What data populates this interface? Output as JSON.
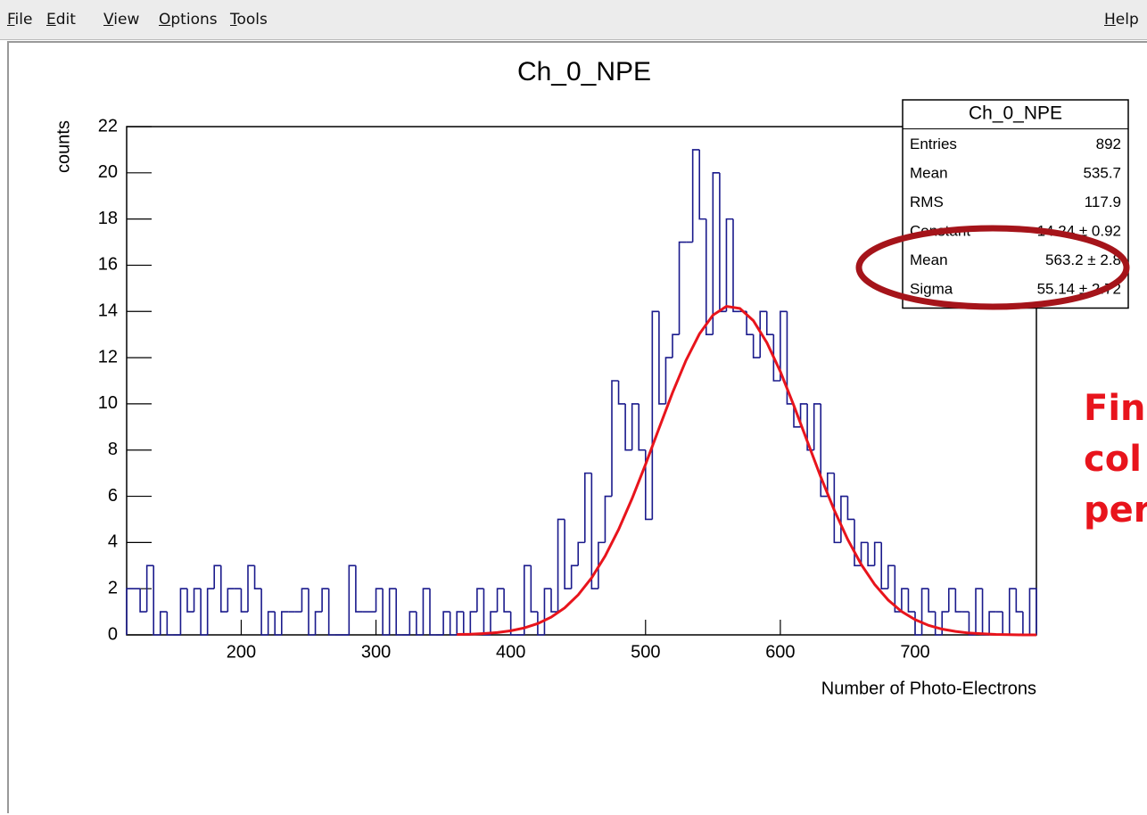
{
  "menu": {
    "items": [
      "File",
      "Edit",
      "View",
      "Options",
      "Tools"
    ],
    "help": "Help"
  },
  "chart_data": {
    "type": "histogram",
    "title": "Ch_0_NPE",
    "x_label": "Number of Photo-Electrons",
    "y_label": "counts",
    "color": "#1a1a8c",
    "bins": [
      115,
      120,
      125,
      130,
      135,
      140,
      145,
      150,
      155,
      160,
      165,
      170,
      175,
      180,
      185,
      190,
      195,
      200,
      205,
      210,
      215,
      220,
      225,
      230,
      235,
      240,
      245,
      250,
      255,
      260,
      265,
      270,
      275,
      280,
      285,
      290,
      295,
      300,
      305,
      310,
      315,
      320,
      325,
      330,
      335,
      340,
      345,
      350,
      355,
      360,
      365,
      370,
      375,
      380,
      385,
      390,
      395,
      400,
      405,
      410,
      415,
      420,
      425,
      430,
      435,
      440,
      445,
      450,
      455,
      460,
      465,
      470,
      475,
      480,
      485,
      490,
      495,
      500,
      505,
      510,
      515,
      520,
      525,
      530,
      535,
      540,
      545,
      550,
      555,
      560,
      565,
      570,
      575,
      580,
      585,
      590,
      595,
      600,
      605,
      610,
      615,
      620,
      625,
      630,
      635,
      640,
      645,
      650,
      655,
      660,
      665,
      670,
      675,
      680,
      685,
      690,
      695,
      700,
      705,
      710,
      715,
      720,
      725,
      730,
      735,
      740,
      745,
      750,
      755,
      760,
      765,
      770,
      775,
      780,
      785,
      790
    ],
    "values": [
      2,
      2,
      1,
      3,
      0,
      1,
      0,
      0,
      2,
      1,
      2,
      0,
      2,
      3,
      1,
      2,
      2,
      1,
      3,
      2,
      0,
      1,
      0,
      1,
      1,
      1,
      2,
      0,
      1,
      2,
      0,
      0,
      0,
      3,
      1,
      1,
      1,
      2,
      0,
      2,
      0,
      0,
      1,
      0,
      2,
      0,
      0,
      1,
      0,
      1,
      0,
      1,
      2,
      0,
      1,
      2,
      1,
      0,
      0,
      3,
      1,
      0,
      2,
      1,
      5,
      2,
      3,
      4,
      7,
      2,
      4,
      6,
      11,
      10,
      8,
      10,
      8,
      5,
      14,
      10,
      12,
      13,
      17,
      17,
      21,
      18,
      13,
      20,
      14,
      18,
      14,
      14,
      13,
      12,
      14,
      13,
      11,
      14,
      10,
      9,
      10,
      8,
      10,
      6,
      7,
      4,
      6,
      5,
      3,
      4,
      3,
      4,
      2,
      3,
      1,
      2,
      1,
      0,
      2,
      1,
      0,
      1,
      2,
      1,
      1,
      0,
      2,
      0,
      1,
      1,
      0,
      2,
      1,
      0,
      2
    ],
    "fit": {
      "name": "gaus",
      "color": "#e8141c",
      "x": [
        360,
        370,
        380,
        390,
        400,
        410,
        420,
        430,
        440,
        450,
        460,
        470,
        480,
        490,
        500,
        510,
        520,
        530,
        540,
        550,
        560,
        570,
        580,
        590,
        600,
        610,
        620,
        630,
        640,
        650,
        660,
        670,
        680,
        690,
        700,
        710,
        720,
        730,
        740,
        750,
        760,
        770,
        780,
        790
      ],
      "values": [
        0.02,
        0.03,
        0.06,
        0.1,
        0.18,
        0.3,
        0.49,
        0.77,
        1.17,
        1.73,
        2.47,
        3.41,
        4.56,
        5.9,
        7.38,
        8.94,
        10.48,
        11.88,
        13.03,
        13.84,
        14.22,
        14.13,
        13.6,
        12.65,
        11.4,
        9.93,
        8.38,
        6.84,
        5.4,
        4.13,
        3.05,
        2.18,
        1.51,
        1.01,
        0.66,
        0.41,
        0.25,
        0.15,
        0.08,
        0.05,
        0.02,
        0.01,
        0,
        0
      ]
    },
    "xlim": [
      115,
      790
    ],
    "xticks": [
      200,
      300,
      400,
      500,
      600,
      700
    ],
    "ylim": [
      0,
      22
    ],
    "yticks": [
      0,
      2,
      4,
      6,
      8,
      10,
      12,
      14,
      16,
      18,
      20,
      22
    ],
    "stats": {
      "title": "Ch_0_NPE",
      "rows": [
        {
          "label": "Entries",
          "value": 892
        },
        {
          "label": "Mean",
          "value": 535.7
        },
        {
          "label": "RMS",
          "value": 117.9
        },
        {
          "label": "Constant",
          "value": "14.24 ± 0.92"
        },
        {
          "label": "Mean",
          "value": "563.2 ± 2.8"
        },
        {
          "label": "Sigma",
          "value": "55.14 ± 2.72"
        }
      ]
    }
  },
  "annotation": [
    "Fin",
    "col",
    "per"
  ]
}
